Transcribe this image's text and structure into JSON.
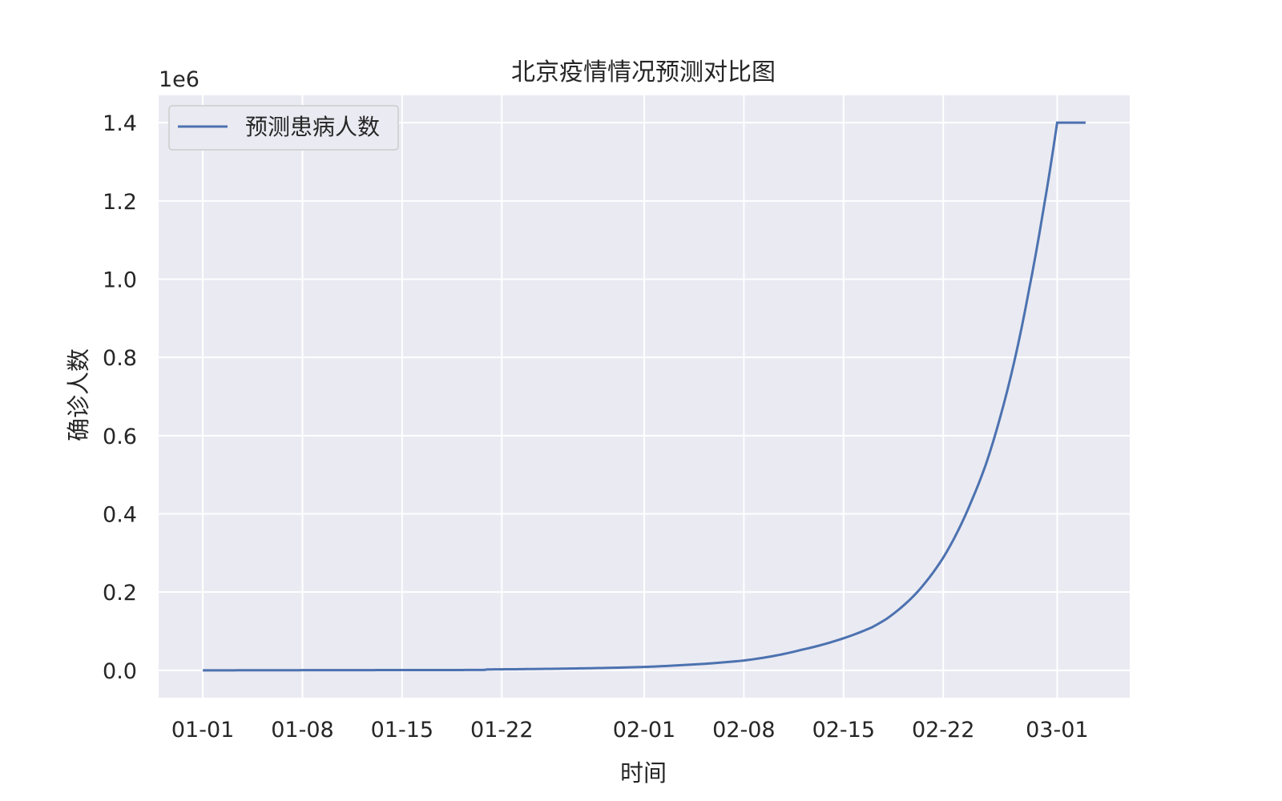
{
  "chart_data": {
    "type": "line",
    "title": "北京疫情情况预测对比图",
    "xlabel": "时间",
    "ylabel": "确诊人数",
    "y_offset_text": "1e6",
    "x_ticks": [
      "01-01",
      "01-08",
      "01-15",
      "01-22",
      "02-01",
      "02-08",
      "02-15",
      "02-22",
      "03-01"
    ],
    "y_ticks": [
      "0.0",
      "0.2",
      "0.4",
      "0.6",
      "0.8",
      "1.0",
      "1.2",
      "1.4"
    ],
    "x_range": [
      "01-01",
      "03-03"
    ],
    "ylim": [
      -70000,
      1470000
    ],
    "grid": true,
    "legend_position": "upper left",
    "colors": {
      "series": "#4c72b0",
      "plot_bg": "#eaeaf2",
      "grid": "#ffffff",
      "text": "#262626"
    },
    "series": [
      {
        "name": "预测患病人数",
        "x": [
          "01-01",
          "01-08",
          "01-15",
          "01-22",
          "02-01",
          "02-03",
          "02-05",
          "02-08",
          "02-10",
          "02-12",
          "02-15",
          "02-17",
          "02-18",
          "02-19",
          "02-20",
          "02-21",
          "02-22",
          "02-23",
          "02-24",
          "02-25",
          "02-26",
          "02-27",
          "02-28",
          "02-29",
          "03-01",
          "03-02",
          "03-03"
        ],
        "y": [
          0,
          300,
          900,
          2500,
          8500,
          12000,
          16000,
          25000,
          36000,
          52000,
          82000,
          110000,
          131000,
          159000,
          193000,
          236000,
          288000,
          354000,
          434000,
          527000,
          647000,
          791000,
          968000,
          1170000,
          1400000,
          1400000,
          1400000
        ]
      }
    ]
  }
}
